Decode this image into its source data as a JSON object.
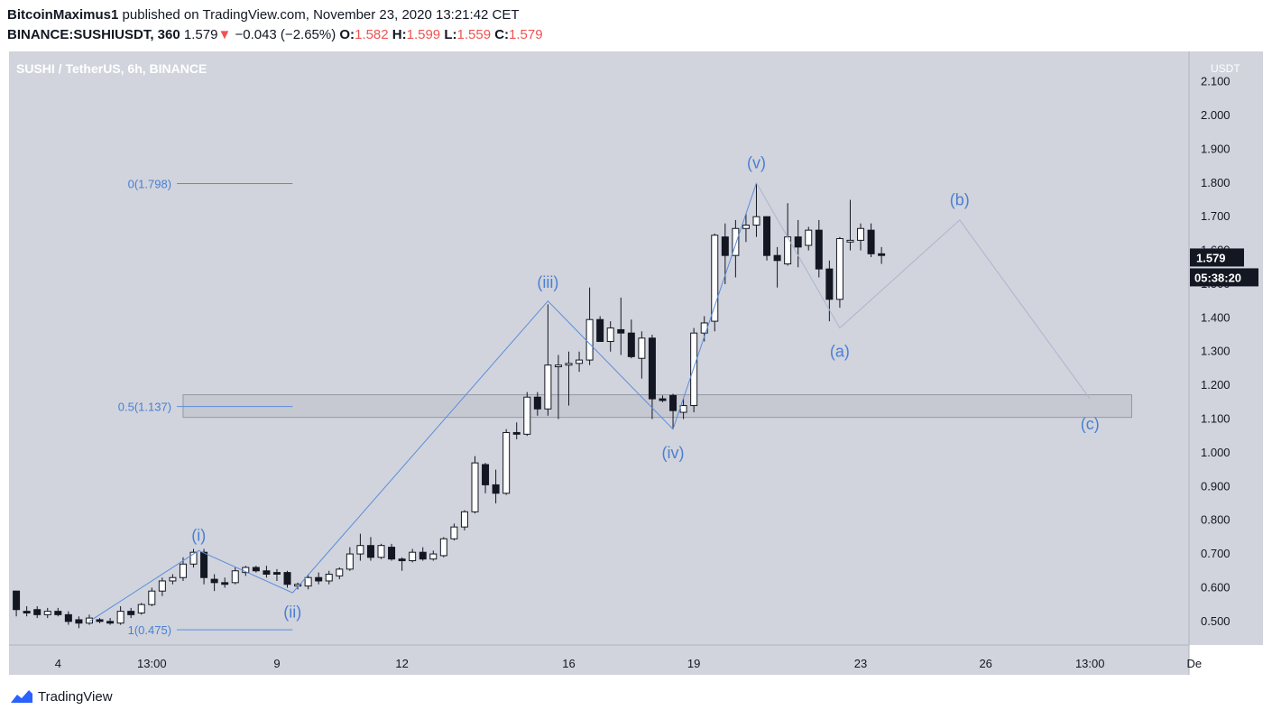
{
  "header": {
    "author": "BitcoinMaximus1",
    "published_text": "published on TradingView.com, November 23, 2020 13:21:42 CET",
    "symbol": "BINANCE:SUSHIUSDT, 360",
    "last": "1.579",
    "change_arrow": "▼",
    "change": "−0.043 (−2.65%)",
    "o_label": "O:",
    "o_value": "1.582",
    "h_label": "H:",
    "h_value": "1.599",
    "l_label": "L:",
    "l_value": "1.559",
    "c_label": "C:",
    "c_value": "1.579"
  },
  "footer": {
    "brand": "TradingView"
  },
  "colors": {
    "background": "#d1d4dc",
    "wave": "#5b8ddb",
    "label": "#4a7fd4",
    "price_badge": "#131722",
    "zone_fill": "#c3c6cf",
    "zone_stroke": "#9598a1",
    "change_red": "#ef5350"
  },
  "chart_data": {
    "type": "candlestick",
    "title": "SUSHI / TetherUS, 6h, BINANCE",
    "axis_unit": "USDT",
    "y_ticks": [
      "2.100",
      "2.000",
      "1.900",
      "1.800",
      "1.700",
      "1.600",
      "1.500",
      "1.400",
      "1.300",
      "1.200",
      "1.100",
      "1.000",
      "0.900",
      "0.800",
      "0.700",
      "0.600",
      "0.500"
    ],
    "ylim": [
      0.43,
      2.19
    ],
    "x_ticks": [
      {
        "label": "4",
        "x": 4
      },
      {
        "label": "13:00",
        "x": 13
      },
      {
        "label": "9",
        "x": 25
      },
      {
        "label": "12",
        "x": 37
      },
      {
        "label": "16",
        "x": 53
      },
      {
        "label": "19",
        "x": 65
      },
      {
        "label": "23",
        "x": 81
      },
      {
        "label": "26",
        "x": 93
      },
      {
        "label": "13:00",
        "x": 103
      },
      {
        "label": "De",
        "x": 113
      }
    ],
    "xlim": [
      -0.7,
      112.5
    ],
    "grid": false,
    "candles": [
      {
        "o": 0.59,
        "h": 0.59,
        "l": 0.515,
        "c": 0.535
      },
      {
        "o": 0.53,
        "h": 0.545,
        "l": 0.515,
        "c": 0.525
      },
      {
        "o": 0.535,
        "h": 0.545,
        "l": 0.51,
        "c": 0.52
      },
      {
        "o": 0.52,
        "h": 0.54,
        "l": 0.51,
        "c": 0.53
      },
      {
        "o": 0.53,
        "h": 0.54,
        "l": 0.515,
        "c": 0.52
      },
      {
        "o": 0.52,
        "h": 0.53,
        "l": 0.49,
        "c": 0.5
      },
      {
        "o": 0.505,
        "h": 0.515,
        "l": 0.48,
        "c": 0.495
      },
      {
        "o": 0.495,
        "h": 0.52,
        "l": 0.49,
        "c": 0.51
      },
      {
        "o": 0.505,
        "h": 0.51,
        "l": 0.495,
        "c": 0.5
      },
      {
        "o": 0.5,
        "h": 0.51,
        "l": 0.49,
        "c": 0.495
      },
      {
        "o": 0.495,
        "h": 0.545,
        "l": 0.49,
        "c": 0.53
      },
      {
        "o": 0.53,
        "h": 0.54,
        "l": 0.51,
        "c": 0.52
      },
      {
        "o": 0.525,
        "h": 0.555,
        "l": 0.52,
        "c": 0.55
      },
      {
        "o": 0.55,
        "h": 0.6,
        "l": 0.545,
        "c": 0.59
      },
      {
        "o": 0.59,
        "h": 0.63,
        "l": 0.575,
        "c": 0.62
      },
      {
        "o": 0.62,
        "h": 0.64,
        "l": 0.61,
        "c": 0.63
      },
      {
        "o": 0.63,
        "h": 0.69,
        "l": 0.62,
        "c": 0.67
      },
      {
        "o": 0.67,
        "h": 0.715,
        "l": 0.66,
        "c": 0.705
      },
      {
        "o": 0.705,
        "h": 0.715,
        "l": 0.61,
        "c": 0.63
      },
      {
        "o": 0.625,
        "h": 0.64,
        "l": 0.59,
        "c": 0.615
      },
      {
        "o": 0.615,
        "h": 0.63,
        "l": 0.6,
        "c": 0.61
      },
      {
        "o": 0.615,
        "h": 0.66,
        "l": 0.61,
        "c": 0.65
      },
      {
        "o": 0.645,
        "h": 0.665,
        "l": 0.635,
        "c": 0.66
      },
      {
        "o": 0.66,
        "h": 0.665,
        "l": 0.645,
        "c": 0.65
      },
      {
        "o": 0.65,
        "h": 0.665,
        "l": 0.63,
        "c": 0.64
      },
      {
        "o": 0.645,
        "h": 0.655,
        "l": 0.62,
        "c": 0.64
      },
      {
        "o": 0.645,
        "h": 0.65,
        "l": 0.6,
        "c": 0.61
      },
      {
        "o": 0.605,
        "h": 0.615,
        "l": 0.595,
        "c": 0.61
      },
      {
        "o": 0.605,
        "h": 0.64,
        "l": 0.595,
        "c": 0.63
      },
      {
        "o": 0.63,
        "h": 0.645,
        "l": 0.61,
        "c": 0.62
      },
      {
        "o": 0.62,
        "h": 0.65,
        "l": 0.61,
        "c": 0.64
      },
      {
        "o": 0.635,
        "h": 0.66,
        "l": 0.625,
        "c": 0.655
      },
      {
        "o": 0.655,
        "h": 0.72,
        "l": 0.65,
        "c": 0.7
      },
      {
        "o": 0.7,
        "h": 0.76,
        "l": 0.68,
        "c": 0.725
      },
      {
        "o": 0.725,
        "h": 0.75,
        "l": 0.68,
        "c": 0.69
      },
      {
        "o": 0.69,
        "h": 0.73,
        "l": 0.685,
        "c": 0.725
      },
      {
        "o": 0.72,
        "h": 0.73,
        "l": 0.68,
        "c": 0.685
      },
      {
        "o": 0.685,
        "h": 0.69,
        "l": 0.65,
        "c": 0.68
      },
      {
        "o": 0.68,
        "h": 0.715,
        "l": 0.675,
        "c": 0.705
      },
      {
        "o": 0.705,
        "h": 0.72,
        "l": 0.68,
        "c": 0.685
      },
      {
        "o": 0.685,
        "h": 0.71,
        "l": 0.68,
        "c": 0.7
      },
      {
        "o": 0.695,
        "h": 0.75,
        "l": 0.69,
        "c": 0.745
      },
      {
        "o": 0.745,
        "h": 0.79,
        "l": 0.74,
        "c": 0.78
      },
      {
        "o": 0.78,
        "h": 0.83,
        "l": 0.77,
        "c": 0.825
      },
      {
        "o": 0.825,
        "h": 0.99,
        "l": 0.82,
        "c": 0.97
      },
      {
        "o": 0.965,
        "h": 0.97,
        "l": 0.88,
        "c": 0.905
      },
      {
        "o": 0.905,
        "h": 0.95,
        "l": 0.85,
        "c": 0.88
      },
      {
        "o": 0.88,
        "h": 1.07,
        "l": 0.875,
        "c": 1.06
      },
      {
        "o": 1.06,
        "h": 1.09,
        "l": 1.04,
        "c": 1.055
      },
      {
        "o": 1.055,
        "h": 1.18,
        "l": 1.05,
        "c": 1.165
      },
      {
        "o": 1.165,
        "h": 1.18,
        "l": 1.11,
        "c": 1.13
      },
      {
        "o": 1.13,
        "h": 1.44,
        "l": 1.11,
        "c": 1.26
      },
      {
        "o": 1.255,
        "h": 1.29,
        "l": 1.1,
        "c": 1.26
      },
      {
        "o": 1.26,
        "h": 1.3,
        "l": 1.14,
        "c": 1.265
      },
      {
        "o": 1.265,
        "h": 1.3,
        "l": 1.24,
        "c": 1.275
      },
      {
        "o": 1.275,
        "h": 1.49,
        "l": 1.26,
        "c": 1.395
      },
      {
        "o": 1.395,
        "h": 1.405,
        "l": 1.33,
        "c": 1.33
      },
      {
        "o": 1.33,
        "h": 1.39,
        "l": 1.3,
        "c": 1.37
      },
      {
        "o": 1.365,
        "h": 1.46,
        "l": 1.29,
        "c": 1.355
      },
      {
        "o": 1.355,
        "h": 1.395,
        "l": 1.28,
        "c": 1.285
      },
      {
        "o": 1.28,
        "h": 1.36,
        "l": 1.22,
        "c": 1.34
      },
      {
        "o": 1.34,
        "h": 1.35,
        "l": 1.1,
        "c": 1.16
      },
      {
        "o": 1.16,
        "h": 1.17,
        "l": 1.15,
        "c": 1.155
      },
      {
        "o": 1.17,
        "h": 1.175,
        "l": 1.07,
        "c": 1.125
      },
      {
        "o": 1.12,
        "h": 1.16,
        "l": 1.1,
        "c": 1.14
      },
      {
        "o": 1.14,
        "h": 1.37,
        "l": 1.12,
        "c": 1.355
      },
      {
        "o": 1.355,
        "h": 1.405,
        "l": 1.33,
        "c": 1.385
      },
      {
        "o": 1.39,
        "h": 1.65,
        "l": 1.36,
        "c": 1.645
      },
      {
        "o": 1.64,
        "h": 1.68,
        "l": 1.5,
        "c": 1.585
      },
      {
        "o": 1.585,
        "h": 1.69,
        "l": 1.52,
        "c": 1.665
      },
      {
        "o": 1.665,
        "h": 1.71,
        "l": 1.625,
        "c": 1.675
      },
      {
        "o": 1.675,
        "h": 1.8,
        "l": 1.64,
        "c": 1.7
      },
      {
        "o": 1.7,
        "h": 1.7,
        "l": 1.57,
        "c": 1.585
      },
      {
        "o": 1.585,
        "h": 1.61,
        "l": 1.49,
        "c": 1.57
      },
      {
        "o": 1.56,
        "h": 1.74,
        "l": 1.555,
        "c": 1.64
      },
      {
        "o": 1.64,
        "h": 1.69,
        "l": 1.55,
        "c": 1.61
      },
      {
        "o": 1.615,
        "h": 1.67,
        "l": 1.6,
        "c": 1.66
      },
      {
        "o": 1.66,
        "h": 1.69,
        "l": 1.52,
        "c": 1.545
      },
      {
        "o": 1.545,
        "h": 1.57,
        "l": 1.39,
        "c": 1.455
      },
      {
        "o": 1.455,
        "h": 1.64,
        "l": 1.43,
        "c": 1.635
      },
      {
        "o": 1.625,
        "h": 1.75,
        "l": 1.6,
        "c": 1.63
      },
      {
        "o": 1.63,
        "h": 1.68,
        "l": 1.6,
        "c": 1.665
      },
      {
        "o": 1.66,
        "h": 1.68,
        "l": 1.58,
        "c": 1.59
      },
      {
        "o": 1.59,
        "h": 1.61,
        "l": 1.56,
        "c": 1.585
      }
    ],
    "last_price": "1.579",
    "countdown": "05:38:20",
    "fib_levels": [
      {
        "label": "0(1.798)",
        "price": 1.798
      },
      {
        "label": "0.5(1.137)",
        "price": 1.137
      },
      {
        "label": "1(0.475)",
        "price": 0.475
      }
    ],
    "zone": {
      "from": 1.105,
      "to": 1.172,
      "x_from": 16,
      "x_to": 107
    },
    "fib_line_x": [
      15.4,
      26.5
    ],
    "wave_path": [
      {
        "x": 7,
        "price": 0.5
      },
      {
        "x": 17.5,
        "price": 0.71
      },
      {
        "x": 26.5,
        "price": 0.585
      },
      {
        "x": 51,
        "price": 1.45
      },
      {
        "x": 63,
        "price": 1.07
      },
      {
        "x": 71,
        "price": 1.8
      }
    ],
    "projection_path": [
      {
        "x": 71,
        "price": 1.8
      },
      {
        "x": 79,
        "price": 1.37
      },
      {
        "x": 90.5,
        "price": 1.69
      },
      {
        "x": 103,
        "price": 1.16
      }
    ],
    "wave_labels": [
      {
        "text": "(i)",
        "x": 17.5,
        "price": 0.755
      },
      {
        "text": "(ii)",
        "x": 26.5,
        "price": 0.528
      },
      {
        "text": "(iii)",
        "x": 51,
        "price": 1.505
      },
      {
        "text": "(iv)",
        "x": 63,
        "price": 1.0
      },
      {
        "text": "(v)",
        "x": 71,
        "price": 1.86
      },
      {
        "text": "(a)",
        "x": 79,
        "price": 1.3
      },
      {
        "text": "(b)",
        "x": 90.5,
        "price": 1.75
      },
      {
        "text": "(c)",
        "x": 103,
        "price": 1.085
      }
    ]
  }
}
